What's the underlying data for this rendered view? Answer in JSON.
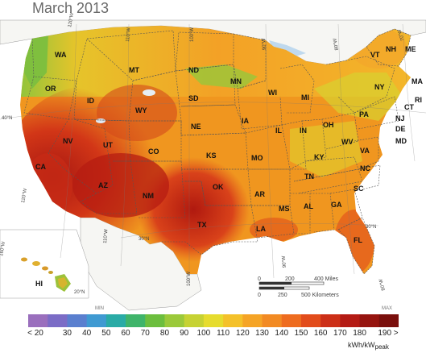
{
  "title": "March 2013",
  "states": [
    "WA",
    "OR",
    "ID",
    "MT",
    "WY",
    "ND",
    "SD",
    "NE",
    "MN",
    "WI",
    "MI",
    "IA",
    "IL",
    "IN",
    "OH",
    "PA",
    "NY",
    "VT",
    "NH",
    "ME",
    "MA",
    "RI",
    "CT",
    "NJ",
    "DE",
    "MD",
    "WV",
    "VA",
    "KY",
    "TN",
    "NC",
    "SC",
    "GA",
    "AL",
    "MS",
    "LA",
    "AR",
    "MO",
    "KS",
    "OK",
    "TX",
    "NM",
    "AZ",
    "CO",
    "UT",
    "NV",
    "CA",
    "FL",
    "HI"
  ],
  "graticule": [
    "120°W",
    "110°W",
    "100°W",
    "90°W",
    "80°W",
    "70°W",
    "40°N",
    "30°N",
    "120°W",
    "110°W",
    "100°W",
    "90°W",
    "80°W",
    "30°N",
    "160°W",
    "20°N"
  ],
  "scale_bar": {
    "miles_ticks": [
      "0",
      "200",
      "400 Miles"
    ],
    "km_ticks": [
      "0",
      "250",
      "500 Kilometers"
    ]
  },
  "legend": {
    "min_label": "MIN",
    "max_label": "MAX",
    "ticks": [
      "< 20",
      "30",
      "40",
      "50",
      "60",
      "70",
      "80",
      "90",
      "100",
      "110",
      "120",
      "130",
      "140",
      "150",
      "160",
      "170",
      "180",
      "190 >"
    ],
    "unit": "kWh/kW",
    "unit_sub": "peak",
    "colors": [
      "#9a6fbd",
      "#7b6cc6",
      "#5a7fcf",
      "#3f9ad2",
      "#2aaba6",
      "#3fb46a",
      "#6cbe3e",
      "#9bc93a",
      "#c6d233",
      "#e6dc2e",
      "#f4c12a",
      "#f5a426",
      "#f28a23",
      "#ee6c1f",
      "#e24c1b",
      "#cc2f17",
      "#b41b14",
      "#96140f",
      "#7a0f0c"
    ]
  },
  "map_colors": {
    "water": "#bfd9ee",
    "land_outside": "#f6f6f3",
    "border": "#555555"
  }
}
